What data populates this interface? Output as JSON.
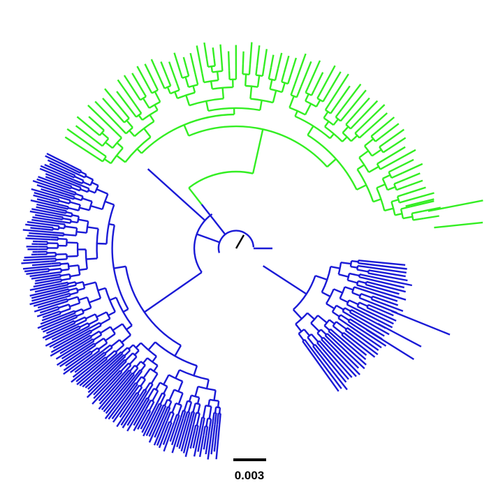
{
  "figure": {
    "type": "circular phylogenetic tree",
    "colors": {
      "clade_green": "#33ee22",
      "clade_blue": "#1a1ad6",
      "root_branch": "#000000",
      "scale_bar": "#000000"
    },
    "clades": [
      {
        "color": "green",
        "approx_leaf_count": 70
      },
      {
        "color": "blue",
        "approx_leaf_count": 150
      }
    ]
  },
  "scale_bar": {
    "label": "0.003"
  }
}
